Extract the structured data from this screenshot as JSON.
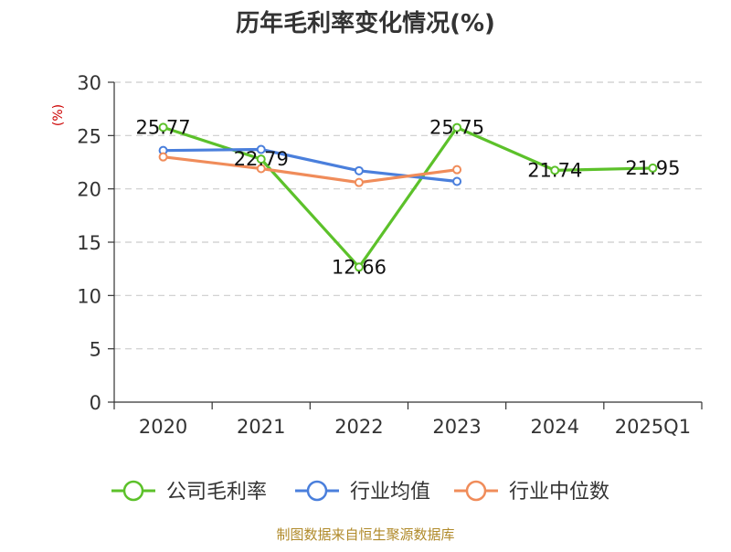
{
  "chart_data": {
    "type": "line",
    "title": "历年毛利率变化情况(%)",
    "ylabel": "(%)",
    "xlabel": "",
    "categories": [
      "2020",
      "2021",
      "2022",
      "2023",
      "2024",
      "2025Q1"
    ],
    "ylim": [
      0,
      30
    ],
    "yticks": [
      0,
      5,
      10,
      15,
      20,
      25,
      30
    ],
    "grid": true,
    "legend_position": "bottom",
    "series": [
      {
        "name": "公司毛利率",
        "color": "#5cc12a",
        "values": [
          25.77,
          22.79,
          12.66,
          25.75,
          21.74,
          21.95
        ],
        "labels": [
          "25.77",
          "22.79",
          "12.66",
          "25.75",
          "21.74",
          "21.95"
        ]
      },
      {
        "name": "行业均值",
        "color": "#4a7fdc",
        "values": [
          23.6,
          23.7,
          21.7,
          20.7,
          null,
          null
        ]
      },
      {
        "name": "行业中位数",
        "color": "#f08c5a",
        "values": [
          23.0,
          21.9,
          20.6,
          21.8,
          null,
          null
        ]
      }
    ]
  },
  "footer": {
    "source": "制图数据来自恒生聚源数据库"
  }
}
